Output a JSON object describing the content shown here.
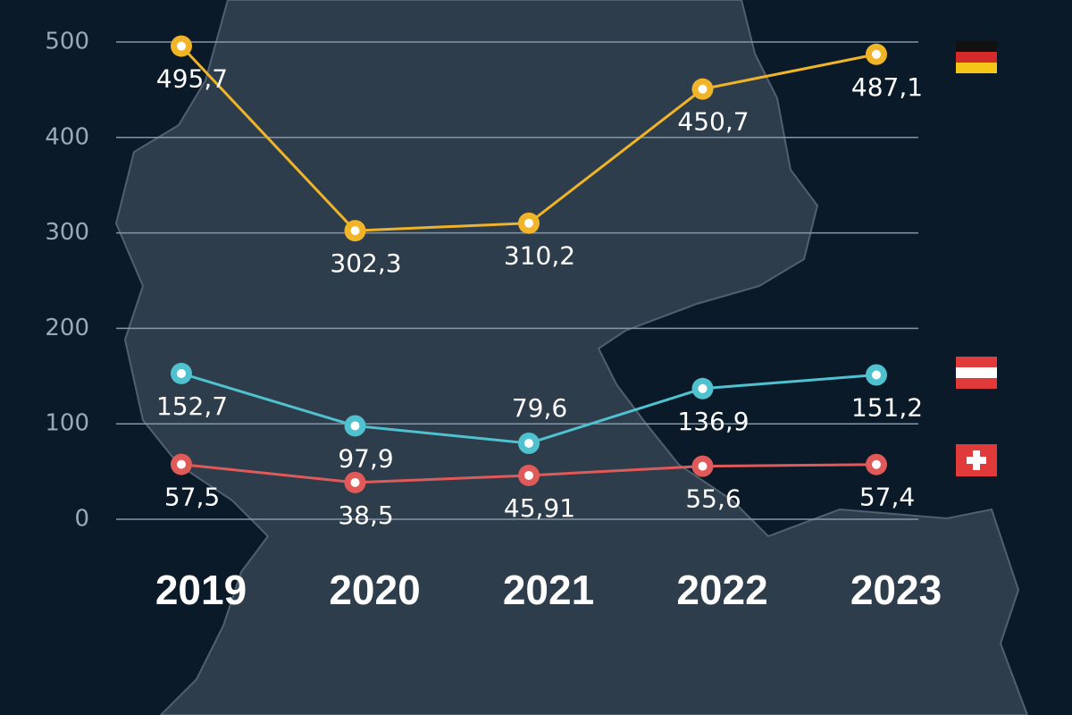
{
  "chart_data": {
    "type": "line",
    "categories": [
      "2019",
      "2020",
      "2021",
      "2022",
      "2023"
    ],
    "series": [
      {
        "color": "#f0b429",
        "values": [
          495.7,
          302.3,
          310.2,
          450.7,
          487.1
        ],
        "value_labels": [
          "495,7",
          "302,3",
          "310,2",
          "450,7",
          "487,1"
        ]
      },
      {
        "color": "#4fc1cf",
        "values": [
          152.7,
          97.9,
          79.6,
          136.9,
          151.2
        ],
        "value_labels": [
          "152,7",
          "97,9",
          "79,6",
          "136,9",
          "151,2"
        ]
      },
      {
        "color": "#e05a5a",
        "values": [
          57.5,
          38.5,
          45.91,
          55.6,
          57.4
        ],
        "value_labels": [
          "57,5",
          "38,5",
          "45,91",
          "55,6",
          "57,4"
        ]
      }
    ],
    "ylim": [
      0,
      500
    ],
    "yticks": [
      0,
      100,
      200,
      300,
      400,
      500
    ],
    "grid": true
  }
}
